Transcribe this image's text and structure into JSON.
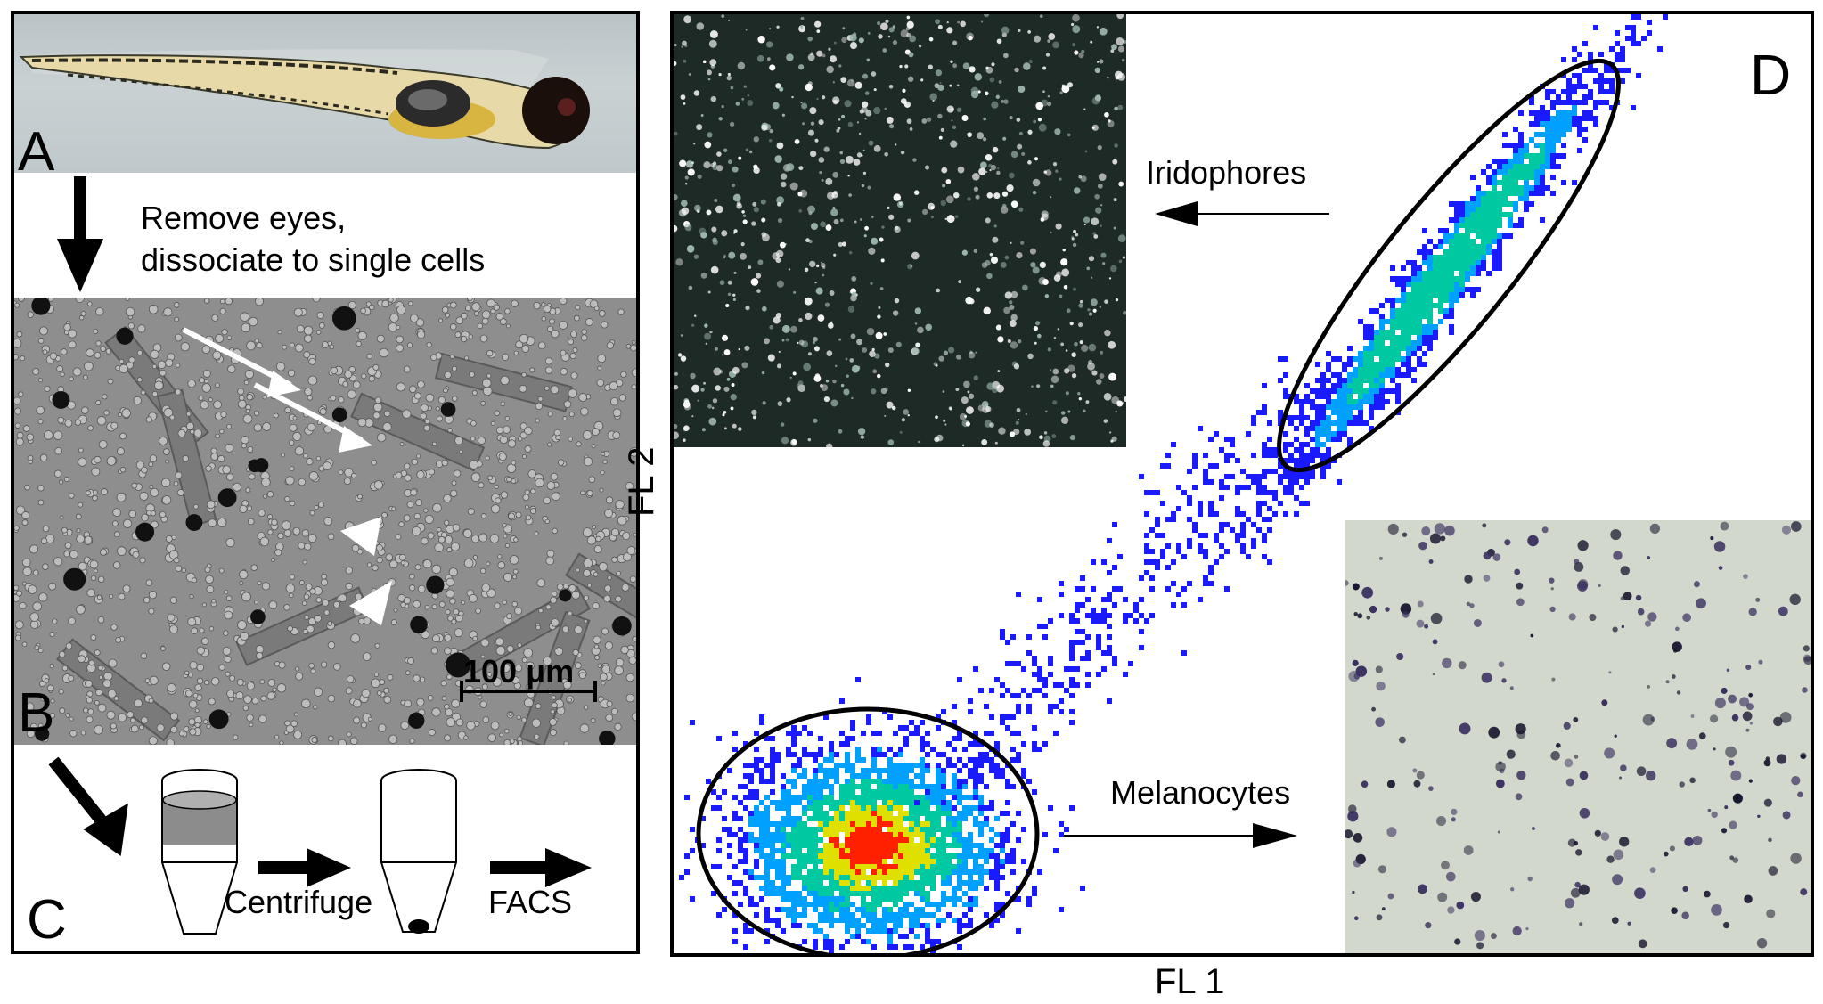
{
  "panels": {
    "a": {
      "letter": "A",
      "image": "zebrafish-larva-photo"
    },
    "b": {
      "letter": "B",
      "step_text_line1": "Remove eyes,",
      "step_text_line2": "dissociate to single cells",
      "scale_bar": "100 μm",
      "image": "dissociated-cells-micrograph"
    },
    "c": {
      "letter": "C",
      "centrifuge_label": "Centrifuge",
      "facs_label": "FACS"
    },
    "d": {
      "letter": "D",
      "xlabel": "FL 1",
      "ylabel": "FL 2",
      "iridophores_label": "Iridophores",
      "melanocytes_label": "Melanocytes",
      "colors": {
        "low": "#1a1aff",
        "mid": "#00c8a0",
        "high": "#ff2000",
        "gate": "#000000"
      }
    }
  }
}
